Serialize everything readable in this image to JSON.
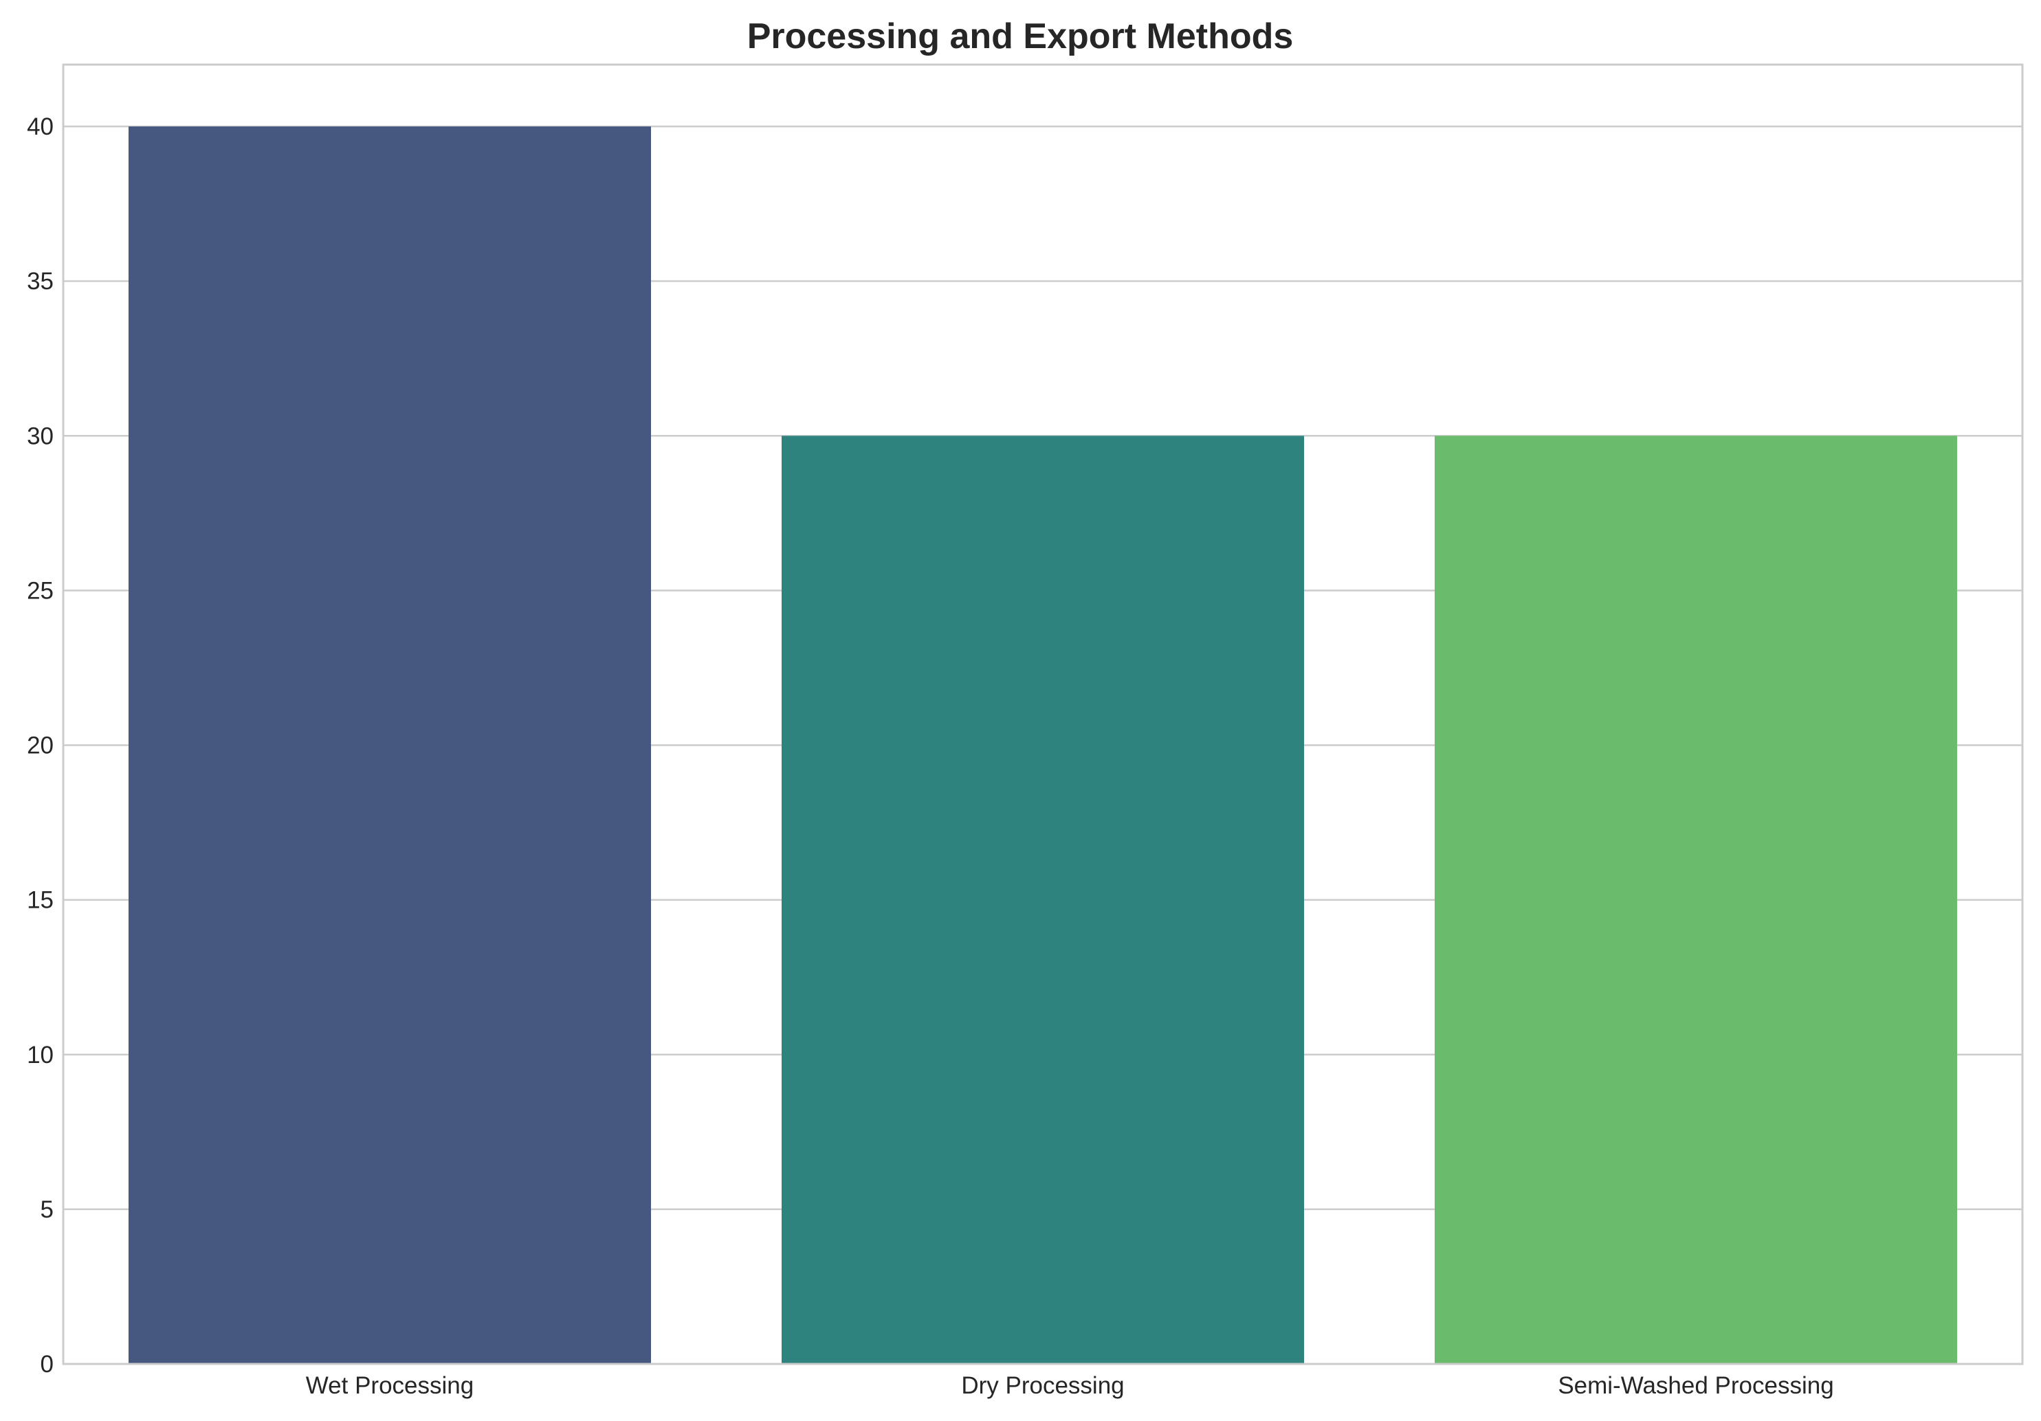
{
  "chart_data": {
    "type": "bar",
    "title": "Processing and Export Methods",
    "xlabel": "",
    "ylabel": "",
    "categories": [
      "Wet Processing",
      "Dry Processing",
      "Semi-Washed Processing"
    ],
    "values": [
      40,
      30,
      30
    ],
    "colors": [
      "#46587f",
      "#2e837e",
      "#6bbb6d"
    ],
    "ylim": [
      0,
      42
    ],
    "yticks": [
      0,
      5,
      10,
      15,
      20,
      25,
      30,
      35,
      40
    ],
    "grid": true,
    "legend": "none"
  }
}
